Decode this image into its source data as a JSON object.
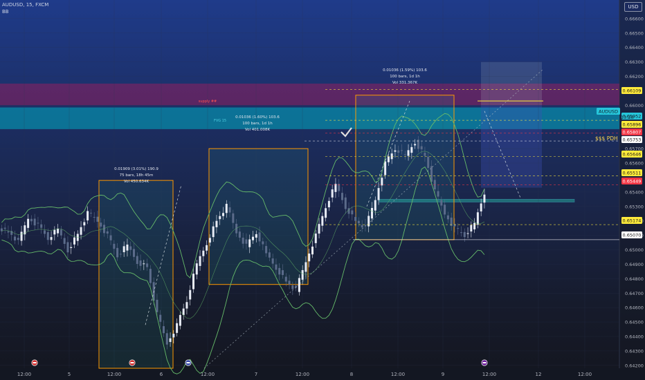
{
  "header": {
    "symbol_line": "AUDUSD, 15, FXCM",
    "indicator": "BB"
  },
  "currency_button": "USD",
  "price_axis": {
    "ticks": [
      "0.66600",
      "0.66500",
      "0.66400",
      "0.66300",
      "0.66200",
      "0.66000",
      "0.65700",
      "0.65600",
      "0.65400",
      "0.65300",
      "0.65200",
      "0.65100",
      "0.65000",
      "0.64900",
      "0.64800",
      "0.64700",
      "0.64600",
      "0.64500",
      "0.64400",
      "0.64300",
      "0.64200"
    ],
    "labels": [
      {
        "text": "0.66109",
        "bg": "#ffeb3b",
        "fg": "#1a1a1a"
      },
      {
        "text": "AUDUSD",
        "bg": "#26c6da",
        "fg": "#0d1b2a"
      },
      {
        "text": "0.65952",
        "bg": "#26c6da",
        "fg": "#0d1b2a"
      },
      {
        "text": "0.65896",
        "bg": "#ffeb3b",
        "fg": "#1a1a1a"
      },
      {
        "text": "0.65807",
        "bg": "#f23645",
        "fg": "#ffffff"
      },
      {
        "text": "0.65753",
        "bg": "#ffffff",
        "fg": "#1a1a1a"
      },
      {
        "text": "0.65646",
        "bg": "#ffeb3b",
        "fg": "#1a1a1a"
      },
      {
        "text": "0.65511",
        "bg": "#ffeb3b",
        "fg": "#1a1a1a"
      },
      {
        "text": "0.65449",
        "bg": "#f23645",
        "fg": "#ffffff"
      },
      {
        "text": "0.65174",
        "bg": "#ffeb3b",
        "fg": "#1a1a1a"
      },
      {
        "text": "0.65070",
        "bg": "#ffffff",
        "fg": "#1a1a1a"
      }
    ],
    "countdown": "13:28"
  },
  "time_axis": [
    "12:00",
    "5",
    "12:00",
    "6",
    "12:00",
    "7",
    "12:00",
    "8",
    "12:00",
    "9",
    "12:00",
    "12",
    "12:00"
  ],
  "annotations": {
    "box1": [
      "0.01909 (3.01%) 190.9",
      "75 bars, 18h 45m",
      "Vol 450.634K"
    ],
    "box2": [
      "0.01036 (1.60%) 103.6",
      "100 bars, 1d 1h",
      "Vol 401.008K"
    ],
    "box3": [
      "0.01036 (1.59%) 103.6",
      "100 bars, 1d 1h",
      "Vol 331.367K"
    ],
    "pdh": "$$$ PDH",
    "zone_red": "supply ##",
    "zone_fvg": "FVG 15"
  },
  "chart_data": {
    "type": "candlestick",
    "title": "AUDUSD, 15, FXCM",
    "indicator": "BB",
    "currency": "USD",
    "last_price": 0.65952,
    "ylim": [
      0.6418,
      0.667
    ],
    "x_ticks": [
      "12:00",
      "5",
      "12:00",
      "6",
      "12:00",
      "7",
      "12:00",
      "8",
      "12:00",
      "9",
      "12:00",
      "12",
      "12:00"
    ],
    "y_ticks": [
      0.666,
      0.665,
      0.664,
      0.663,
      0.662,
      0.66,
      0.657,
      0.656,
      0.654,
      0.653,
      0.652,
      0.651,
      0.65,
      0.649,
      0.648,
      0.647,
      0.646,
      0.645,
      0.644,
      0.643,
      0.642
    ],
    "price_path": [
      [
        0.6516,
        0.6512
      ],
      [
        0.6513,
        0.6505
      ],
      [
        0.6505,
        0.6522
      ],
      [
        0.6522,
        0.6517
      ],
      [
        0.6517,
        0.6508
      ],
      [
        0.6508,
        0.6514
      ],
      [
        0.6514,
        0.65
      ],
      [
        0.65,
        0.6511
      ],
      [
        0.6511,
        0.6525
      ],
      [
        0.6525,
        0.652
      ],
      [
        0.652,
        0.651
      ],
      [
        0.651,
        0.6496
      ],
      [
        0.6496,
        0.6503
      ],
      [
        0.6503,
        0.6492
      ],
      [
        0.6492,
        0.6488
      ],
      [
        0.6488,
        0.6455
      ],
      [
        0.6455,
        0.6435
      ],
      [
        0.6435,
        0.6448
      ],
      [
        0.6448,
        0.6465
      ],
      [
        0.6465,
        0.649
      ],
      [
        0.649,
        0.6505
      ],
      [
        0.6505,
        0.652
      ],
      [
        0.652,
        0.653
      ],
      [
        0.653,
        0.6512
      ],
      [
        0.6512,
        0.6503
      ],
      [
        0.6503,
        0.6512
      ],
      [
        0.6512,
        0.6497
      ],
      [
        0.6497,
        0.6488
      ],
      [
        0.6488,
        0.6478
      ],
      [
        0.6478,
        0.6472
      ],
      [
        0.6472,
        0.6492
      ],
      [
        0.6492,
        0.651
      ],
      [
        0.651,
        0.653
      ],
      [
        0.653,
        0.6545
      ],
      [
        0.6545,
        0.653
      ],
      [
        0.653,
        0.652
      ],
      [
        0.652,
        0.6515
      ],
      [
        0.6515,
        0.6535
      ],
      [
        0.6535,
        0.656
      ],
      [
        0.656,
        0.657
      ],
      [
        0.657,
        0.6565
      ],
      [
        0.6565,
        0.6575
      ],
      [
        0.6575,
        0.6565
      ],
      [
        0.6565,
        0.654
      ],
      [
        0.654,
        0.6525
      ],
      [
        0.6525,
        0.6515
      ],
      [
        0.6515,
        0.651
      ],
      [
        0.651,
        0.6518
      ],
      [
        0.6518,
        0.654
      ],
      [
        0.654,
        0.656
      ],
      [
        0.656,
        0.6545
      ],
      [
        0.6545,
        0.6552
      ],
      [
        0.6552,
        0.657
      ],
      [
        0.657,
        0.659
      ],
      [
        0.659,
        0.6592
      ],
      [
        0.6592,
        0.66
      ],
      [
        0.66,
        0.6595
      ],
      [
        0.6595,
        0.66
      ],
      [
        0.66,
        0.6608
      ],
      [
        0.6608,
        0.6598
      ]
    ],
    "levels": [
      0.66109,
      0.65896,
      0.65807,
      0.65753,
      0.65646,
      0.65511,
      0.65449,
      0.65174,
      0.6507
    ],
    "measure_boxes": [
      {
        "label": "0.01909 (3.01%) 190.9",
        "bars": 75,
        "duration": "18h 45m",
        "volume": "450.634K"
      },
      {
        "label": "0.01036 (1.60%) 103.6",
        "bars": 100,
        "duration": "1d 1h",
        "volume": "401.008K"
      },
      {
        "label": "0.01036 (1.59%) 103.6",
        "bars": 100,
        "duration": "1d 1h",
        "volume": "331.367K"
      }
    ],
    "grid": true
  }
}
